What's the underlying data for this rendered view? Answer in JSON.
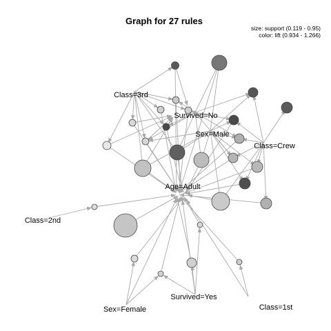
{
  "graph": {
    "title": "Graph for 27 rules",
    "legend": {
      "size_text": "size: support (0.119 - 0.95)",
      "color_text": "color: lift (0.934 - 1.266)"
    },
    "items": [
      {
        "id": "class3",
        "label": "Class=3rd"
      },
      {
        "id": "survno",
        "label": "Survived=No"
      },
      {
        "id": "male",
        "label": "Sex=Male"
      },
      {
        "id": "crew",
        "label": "Class=Crew"
      },
      {
        "id": "adult",
        "label": "Age=Adult"
      },
      {
        "id": "class2",
        "label": "Class=2nd"
      },
      {
        "id": "female",
        "label": "Sex=Female"
      },
      {
        "id": "survyes",
        "label": "Survived=Yes"
      },
      {
        "id": "class1",
        "label": "Class=1st"
      }
    ],
    "colors": {
      "edge": "#a8a8a8",
      "node_stroke": "#444444",
      "lift_low": "#d8d8d8",
      "lift_high": "#4a4a4a"
    }
  }
}
